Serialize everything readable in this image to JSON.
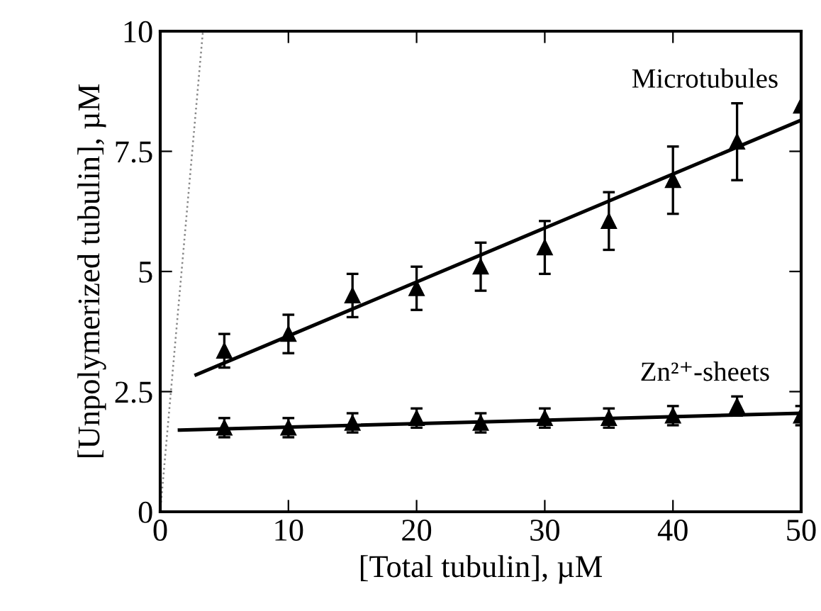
{
  "chart_data": {
    "type": "scatter",
    "xlabel": "[Total tubulin], µM",
    "ylabel": "[Unpolymerized tubulin], µM",
    "xlim": [
      0,
      50
    ],
    "ylim": [
      0,
      10
    ],
    "xticks": [
      0,
      10,
      20,
      30,
      40,
      50
    ],
    "yticks": [
      0,
      2.5,
      5,
      7.5,
      10
    ],
    "grid": false,
    "marker": "triangle",
    "series": [
      {
        "name": "Microtubules",
        "color": "#000000",
        "x": [
          5,
          10,
          15,
          20,
          25,
          30,
          35,
          40,
          45,
          50
        ],
        "values": [
          3.35,
          3.7,
          4.5,
          4.65,
          5.1,
          5.5,
          6.05,
          6.9,
          7.7,
          8.45
        ],
        "errors": [
          0.35,
          0.4,
          0.45,
          0.45,
          0.5,
          0.55,
          0.6,
          0.7,
          0.8,
          null
        ]
      },
      {
        "type": "line",
        "color": "#000000",
        "line_style": "solid",
        "marker": "none",
        "x": [
          2.8,
          50
        ],
        "values": [
          2.85,
          8.15
        ]
      },
      {
        "name": "Zn²⁺-sheets",
        "color": "#000000",
        "x": [
          5,
          10,
          15,
          20,
          25,
          30,
          35,
          40,
          45,
          50
        ],
        "values": [
          1.75,
          1.75,
          1.85,
          1.95,
          1.85,
          1.95,
          1.95,
          2.0,
          2.2,
          2.0
        ],
        "errors": [
          0.2,
          0.2,
          0.2,
          0.2,
          0.2,
          0.2,
          0.2,
          0.2,
          0.2,
          0.2
        ]
      },
      {
        "type": "line",
        "color": "#000000",
        "line_style": "solid",
        "marker": "none",
        "x": [
          1.5,
          50
        ],
        "values": [
          1.7,
          2.05
        ]
      },
      {
        "type": "line",
        "color": "#888888",
        "line_style": "dotted",
        "marker": "none",
        "x": [
          0,
          3.33
        ],
        "values": [
          0,
          10
        ]
      }
    ]
  }
}
